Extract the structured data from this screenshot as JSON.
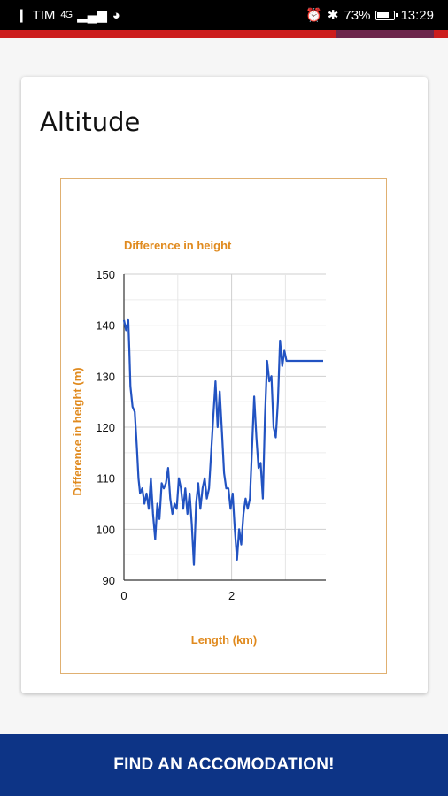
{
  "status_bar": {
    "carrier": "TIM",
    "network": "4G",
    "battery": "73%",
    "time": "13:29"
  },
  "card": {
    "title": "Altitude"
  },
  "chart_data": {
    "type": "line",
    "title": "Difference in height",
    "xlabel": "Length (km)",
    "ylabel": "Difference in height (m)",
    "xlim": [
      0,
      3.75
    ],
    "ylim": [
      90,
      150
    ],
    "x_ticks": [
      0,
      2
    ],
    "y_ticks": [
      90,
      100,
      110,
      120,
      130,
      140,
      150
    ],
    "grid": true,
    "title_color": "#e08a1e",
    "line_color": "#2253c2",
    "series": [
      {
        "x": [
          0.0,
          0.04,
          0.08,
          0.1,
          0.12,
          0.16,
          0.2,
          0.24,
          0.27,
          0.3,
          0.34,
          0.38,
          0.42,
          0.46,
          0.5,
          0.54,
          0.58,
          0.62,
          0.66,
          0.7,
          0.74,
          0.78,
          0.82,
          0.86,
          0.9,
          0.94,
          0.98,
          1.02,
          1.06,
          1.1,
          1.14,
          1.18,
          1.22,
          1.26,
          1.3,
          1.34,
          1.38,
          1.42,
          1.46,
          1.5,
          1.54,
          1.58,
          1.62,
          1.66,
          1.7,
          1.74,
          1.78,
          1.82,
          1.86,
          1.9,
          1.94,
          1.98,
          2.02,
          2.06,
          2.1,
          2.14,
          2.18,
          2.22,
          2.26,
          2.3,
          2.34,
          2.38,
          2.42,
          2.46,
          2.5,
          2.54,
          2.58,
          2.62,
          2.66,
          2.7,
          2.74,
          2.78,
          2.82,
          2.86,
          2.9,
          2.94,
          2.98,
          3.02,
          3.06,
          3.1,
          3.14,
          3.18,
          3.22,
          3.26,
          3.3,
          3.34,
          3.38,
          3.42,
          3.46,
          3.5,
          3.54,
          3.58,
          3.62,
          3.66,
          3.7
        ],
        "y": [
          141,
          139,
          141,
          135,
          128,
          124,
          123,
          116,
          110,
          107,
          108,
          105,
          107,
          104,
          110,
          103,
          98,
          105,
          102,
          109,
          108,
          109,
          112,
          106,
          103,
          105,
          104,
          110,
          108,
          104,
          108,
          103,
          107,
          101,
          93,
          105,
          109,
          104,
          108,
          110,
          106,
          108,
          115,
          122,
          129,
          120,
          127,
          119,
          111,
          108,
          108,
          104,
          107,
          100,
          94,
          100,
          97,
          103,
          106,
          104,
          106,
          116,
          126,
          118,
          112,
          113,
          106,
          122,
          133,
          129,
          130,
          120,
          118,
          125,
          137,
          132,
          135,
          133,
          133,
          133,
          133,
          133,
          133,
          133,
          133,
          133,
          133,
          133,
          133,
          133,
          133,
          133,
          133,
          133,
          133
        ]
      }
    ]
  },
  "footer": {
    "button_label": "FIND AN ACCOMODATION!"
  }
}
